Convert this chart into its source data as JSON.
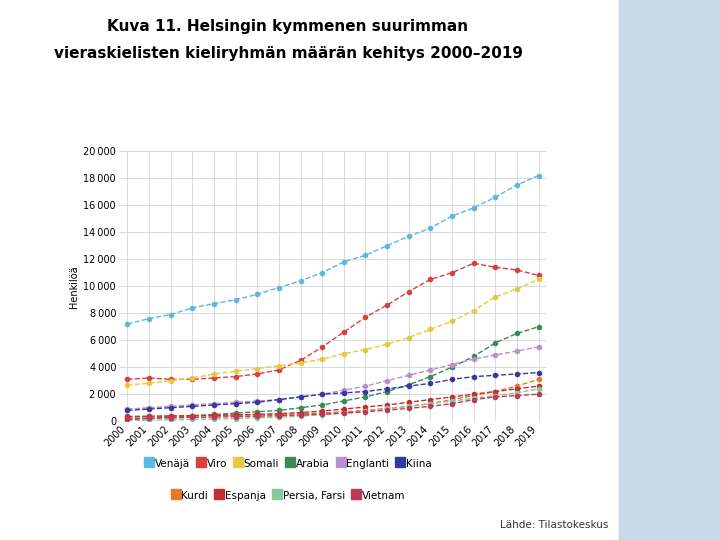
{
  "title_line1": "Kuva 11. Helsingin kymmenen suurimman",
  "title_line2": "vieraskielisten kieliryhmän määrän kehitys 2000–2019",
  "ylabel": "Henkilöä",
  "source": "Lähde: Tilastokeskus",
  "years": [
    2000,
    2001,
    2002,
    2003,
    2004,
    2005,
    2006,
    2007,
    2008,
    2009,
    2010,
    2011,
    2012,
    2013,
    2014,
    2015,
    2016,
    2017,
    2018,
    2019
  ],
  "series": {
    "Venäjä": [
      7200,
      7600,
      7900,
      8400,
      8700,
      9000,
      9400,
      9900,
      10400,
      11000,
      11800,
      12300,
      13000,
      13700,
      14300,
      15200,
      15800,
      16600,
      17500,
      18200
    ],
    "Viro": [
      3100,
      3200,
      3100,
      3100,
      3200,
      3300,
      3500,
      3800,
      4500,
      5500,
      6600,
      7700,
      8600,
      9600,
      10500,
      11000,
      11700,
      11400,
      11200,
      10800
    ],
    "Somali": [
      2700,
      2800,
      3000,
      3200,
      3500,
      3700,
      3900,
      4100,
      4300,
      4600,
      5000,
      5300,
      5700,
      6200,
      6800,
      7400,
      8200,
      9200,
      9800,
      10500
    ],
    "Arabia": [
      100,
      200,
      300,
      400,
      500,
      600,
      700,
      800,
      1000,
      1200,
      1500,
      1800,
      2200,
      2700,
      3300,
      4000,
      4800,
      5800,
      6500,
      7000
    ],
    "Englanti": [
      900,
      1000,
      1100,
      1200,
      1300,
      1400,
      1500,
      1600,
      1800,
      2000,
      2300,
      2600,
      3000,
      3400,
      3800,
      4200,
      4600,
      4900,
      5200,
      5500
    ],
    "Kiina": [
      800,
      900,
      1000,
      1100,
      1200,
      1300,
      1400,
      1600,
      1800,
      2000,
      2100,
      2200,
      2400,
      2600,
      2800,
      3100,
      3300,
      3400,
      3500,
      3600
    ],
    "Kurdi": [
      300,
      350,
      380,
      400,
      420,
      450,
      480,
      500,
      550,
      600,
      700,
      800,
      950,
      1100,
      1300,
      1600,
      1900,
      2200,
      2600,
      3100
    ],
    "Espanja": [
      350,
      370,
      390,
      410,
      440,
      470,
      510,
      560,
      640,
      750,
      900,
      1050,
      1200,
      1400,
      1600,
      1800,
      2000,
      2200,
      2400,
      2600
    ],
    "Persia, Farsi": [
      50,
      80,
      100,
      130,
      160,
      200,
      250,
      300,
      380,
      480,
      600,
      750,
      950,
      1100,
      1300,
      1500,
      1700,
      1900,
      2100,
      2400
    ],
    "Vietnam": [
      200,
      220,
      250,
      280,
      310,
      340,
      370,
      410,
      460,
      520,
      600,
      700,
      820,
      950,
      1100,
      1300,
      1600,
      1800,
      1900,
      2000
    ]
  },
  "colors": {
    "Venäjä": "#5BB8E0",
    "Viro": "#D94040",
    "Somali": "#E8C840",
    "Arabia": "#3A8A5C",
    "Englanti": "#B890D0",
    "Kiina": "#3838A0",
    "Kurdi": "#E87828",
    "Espanja": "#C03030",
    "Persia, Farsi": "#88C8A0",
    "Vietnam": "#C03858"
  },
  "ylim": [
    0,
    20000
  ],
  "yticks": [
    0,
    2000,
    4000,
    6000,
    8000,
    10000,
    12000,
    14000,
    16000,
    18000,
    20000
  ],
  "background_color": "#FFFFFF",
  "plot_bg_color": "#FFFFFF",
  "title_fontsize": 11,
  "legend_fontsize": 7.5,
  "tick_fontsize": 7,
  "ylabel_fontsize": 7
}
